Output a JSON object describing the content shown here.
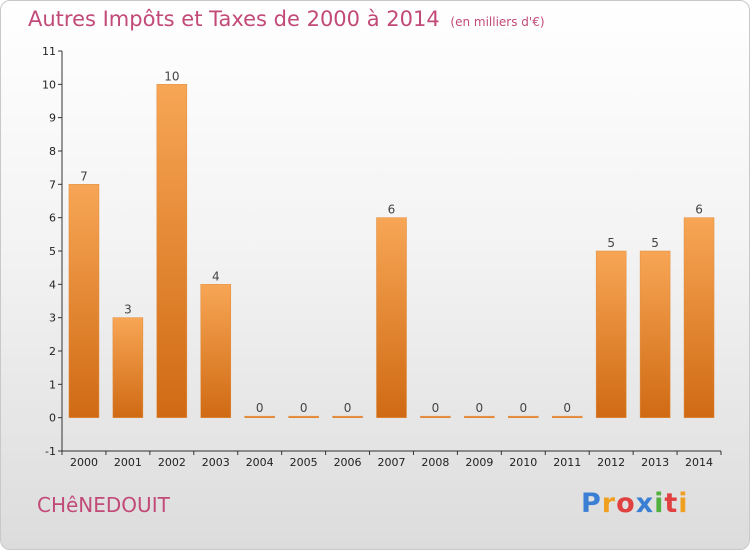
{
  "header": {
    "title": "Autres Impôts et Taxes de 2000 à 2014",
    "subtitle": "(en milliers d'€)"
  },
  "footer": {
    "commune": "CHêNEDOUIT",
    "logo_letters": [
      "P",
      "r",
      "o",
      "x",
      "i",
      "t",
      "i"
    ],
    "logo_colors": [
      "#3b7fd4",
      "#f0a020",
      "#e04040",
      "#3b7fd4",
      "#52b040",
      "#e04040",
      "#f0a020"
    ]
  },
  "chart_data": {
    "type": "bar",
    "categories": [
      "2000",
      "2001",
      "2002",
      "2003",
      "2004",
      "2005",
      "2006",
      "2007",
      "2008",
      "2009",
      "2010",
      "2011",
      "2012",
      "2013",
      "2014"
    ],
    "values": [
      7,
      3,
      10,
      4,
      0,
      0,
      0,
      6,
      0,
      0,
      0,
      0,
      5,
      5,
      6
    ],
    "data_labels": [
      "7",
      "3",
      "10",
      "4",
      "0",
      "0",
      "0",
      "6",
      "0",
      "0",
      "0",
      "0",
      "5",
      "5",
      "6"
    ],
    "title": "Autres Impôts et Taxes de 2000 à 2014",
    "ylim": [
      -1,
      11
    ],
    "yticks": [
      "-1",
      "0",
      "1",
      "2",
      "3",
      "4",
      "5",
      "6",
      "7",
      "8",
      "9",
      "10",
      "11"
    ],
    "grid": false,
    "bar_color_top": "#f7a655",
    "bar_color_bottom": "#d06a14"
  }
}
